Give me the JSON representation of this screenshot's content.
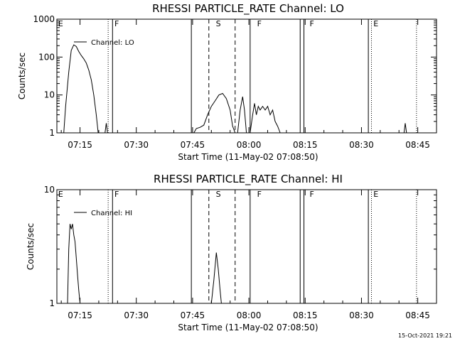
{
  "footer": {
    "timestamp": "15-Oct-2021 19:21"
  },
  "chart_data": [
    {
      "type": "line",
      "title": "RHESSI PARTICLE_RATE Channel: LO",
      "xlabel": "Start Time (11-May-02 07:08:50)",
      "ylabel": "Counts/sec",
      "yscale": "log",
      "xlim": [
        "07:08:50",
        "08:50:00"
      ],
      "ylim": [
        1,
        1000
      ],
      "x_ticks": [
        "07:15",
        "07:30",
        "07:45",
        "08:00",
        "08:15",
        "08:30",
        "08:45"
      ],
      "y_ticks": [
        "1",
        "10",
        "100",
        "1000"
      ],
      "legend": {
        "label": "Channel: LO",
        "position": "top-left"
      },
      "region_labels": [
        {
          "text": "E",
          "time": "07:09"
        },
        {
          "text": "F",
          "time": "07:24"
        },
        {
          "text": "S",
          "time": "07:51"
        },
        {
          "text": "F",
          "time": "08:02"
        },
        {
          "text": "F",
          "time": "08:16"
        },
        {
          "text": "E",
          "time": "08:33"
        }
      ],
      "markers": [
        {
          "time": "07:22:30",
          "style": "dotted"
        },
        {
          "time": "07:23:40",
          "style": "solid"
        },
        {
          "time": "07:44:40",
          "style": "solid"
        },
        {
          "time": "07:49:20",
          "style": "dashed"
        },
        {
          "time": "07:56:20",
          "style": "dashed"
        },
        {
          "time": "08:00:20",
          "style": "solid"
        },
        {
          "time": "08:13:40",
          "style": "solid"
        },
        {
          "time": "08:14:40",
          "style": "solid"
        },
        {
          "time": "08:31:50",
          "style": "solid"
        },
        {
          "time": "08:32:40",
          "style": "dotted"
        },
        {
          "time": "08:44:40",
          "style": "dotted"
        }
      ],
      "series": [
        {
          "name": "Channel: LO",
          "segments": [
            [
              [
                "07:10:40",
                1
              ],
              [
                "07:11:10",
                5
              ],
              [
                "07:12:00",
                40
              ],
              [
                "07:12:40",
                150
              ],
              [
                "07:13:20",
                210
              ],
              [
                "07:14:00",
                190
              ],
              [
                "07:14:40",
                140
              ],
              [
                "07:15:20",
                110
              ],
              [
                "07:16:00",
                90
              ],
              [
                "07:16:40",
                70
              ],
              [
                "07:17:20",
                45
              ],
              [
                "07:18:00",
                25
              ],
              [
                "07:18:40",
                10
              ],
              [
                "07:19:20",
                3
              ],
              [
                "07:19:50",
                1
              ]
            ],
            [
              [
                "07:21:40",
                1
              ],
              [
                "07:22:00",
                1.8
              ],
              [
                "07:22:20",
                1
              ]
            ],
            [
              [
                "07:45:20",
                1
              ],
              [
                "07:46:00",
                1.3
              ],
              [
                "07:47:00",
                1.4
              ],
              [
                "07:48:00",
                1.6
              ],
              [
                "07:49:00",
                3
              ],
              [
                "07:50:00",
                5
              ],
              [
                "07:51:00",
                7
              ],
              [
                "07:52:00",
                10
              ],
              [
                "07:53:00",
                11
              ],
              [
                "07:54:00",
                8
              ],
              [
                "07:55:00",
                4
              ],
              [
                "07:55:40",
                1.5
              ],
              [
                "07:56:20",
                1
              ]
            ],
            [
              [
                "07:57:00",
                1
              ],
              [
                "07:57:40",
                4
              ],
              [
                "07:58:20",
                9
              ],
              [
                "07:58:50",
                4
              ],
              [
                "07:59:20",
                1
              ]
            ],
            [
              [
                "08:00:20",
                1
              ],
              [
                "08:01:00",
                3
              ],
              [
                "08:01:30",
                6
              ],
              [
                "08:02:00",
                3
              ],
              [
                "08:02:30",
                5
              ],
              [
                "08:03:00",
                4
              ],
              [
                "08:03:40",
                5
              ],
              [
                "08:04:20",
                4
              ],
              [
                "08:05:00",
                5
              ],
              [
                "08:05:40",
                3
              ],
              [
                "08:06:20",
                4
              ],
              [
                "08:07:00",
                2
              ],
              [
                "08:07:40",
                1.5
              ],
              [
                "08:08:20",
                1
              ]
            ],
            [
              [
                "08:41:20",
                1
              ],
              [
                "08:41:40",
                1.8
              ],
              [
                "08:42:00",
                1
              ]
            ]
          ]
        }
      ]
    },
    {
      "type": "line",
      "title": "RHESSI PARTICLE_RATE Channel: HI",
      "xlabel": "Start Time (11-May-02 07:08:50)",
      "ylabel": "Counts/sec",
      "yscale": "log",
      "xlim": [
        "07:08:50",
        "08:50:00"
      ],
      "ylim": [
        1,
        10
      ],
      "x_ticks": [
        "07:15",
        "07:30",
        "07:45",
        "08:00",
        "08:15",
        "08:30",
        "08:45"
      ],
      "y_ticks": [
        "1",
        "10"
      ],
      "legend": {
        "label": "Channel: HI",
        "position": "top-left"
      },
      "region_labels": [
        {
          "text": "E",
          "time": "07:09"
        },
        {
          "text": "F",
          "time": "07:24"
        },
        {
          "text": "S",
          "time": "07:51"
        },
        {
          "text": "F",
          "time": "08:02"
        },
        {
          "text": "F",
          "time": "08:16"
        },
        {
          "text": "E",
          "time": "08:33"
        }
      ],
      "markers": [
        {
          "time": "07:22:30",
          "style": "dotted"
        },
        {
          "time": "07:23:40",
          "style": "solid"
        },
        {
          "time": "07:44:40",
          "style": "solid"
        },
        {
          "time": "07:49:20",
          "style": "dashed"
        },
        {
          "time": "07:56:20",
          "style": "dashed"
        },
        {
          "time": "08:00:20",
          "style": "solid"
        },
        {
          "time": "08:13:40",
          "style": "solid"
        },
        {
          "time": "08:14:40",
          "style": "solid"
        },
        {
          "time": "08:31:50",
          "style": "solid"
        },
        {
          "time": "08:32:40",
          "style": "dotted"
        },
        {
          "time": "08:44:40",
          "style": "dotted"
        }
      ],
      "series": [
        {
          "name": "Channel: HI",
          "segments": [
            [
              [
                "07:11:40",
                1
              ],
              [
                "07:12:00",
                3
              ],
              [
                "07:12:20",
                5
              ],
              [
                "07:12:40",
                4.5
              ],
              [
                "07:13:00",
                5
              ],
              [
                "07:13:20",
                4
              ],
              [
                "07:13:40",
                3.5
              ],
              [
                "07:14:00",
                2.5
              ],
              [
                "07:14:20",
                1.8
              ],
              [
                "07:14:40",
                1.3
              ],
              [
                "07:15:00",
                1
              ]
            ],
            [
              [
                "07:50:00",
                1
              ],
              [
                "07:50:40",
                1.6
              ],
              [
                "07:51:20",
                2.8
              ],
              [
                "07:51:50",
                2
              ],
              [
                "07:52:20",
                1.3
              ],
              [
                "07:52:40",
                1
              ]
            ]
          ]
        }
      ]
    }
  ]
}
